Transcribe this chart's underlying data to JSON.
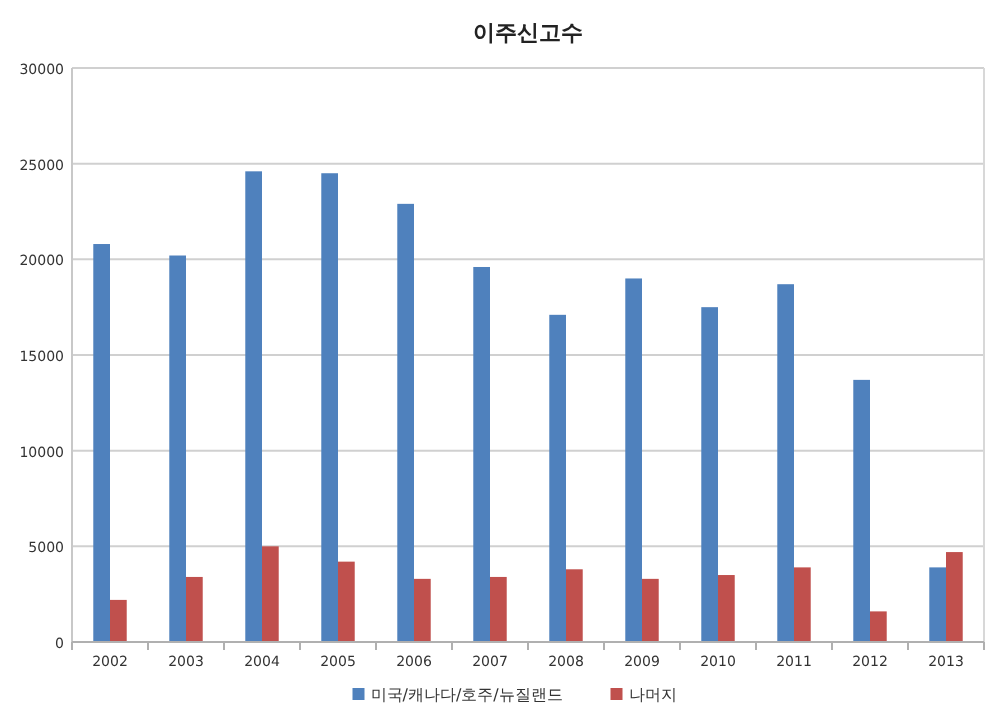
{
  "chart_data": {
    "type": "bar",
    "title": "이주신고수",
    "categories": [
      "2002",
      "2003",
      "2004",
      "2005",
      "2006",
      "2007",
      "2008",
      "2009",
      "2010",
      "2011",
      "2012",
      "2013"
    ],
    "series": [
      {
        "name": "미국/캐나다/호주/뉴질랜드",
        "color": "#4f81bd",
        "values": [
          20800,
          20200,
          24600,
          24500,
          22900,
          19600,
          17100,
          19000,
          17500,
          18700,
          13700,
          3900
        ]
      },
      {
        "name": "나머지",
        "color": "#c0504d",
        "values": [
          2200,
          3400,
          5000,
          4200,
          3300,
          3400,
          3800,
          3300,
          3500,
          3900,
          1600,
          4700
        ]
      }
    ],
    "ylim": [
      0,
      30000
    ],
    "yticks": [
      0,
      5000,
      10000,
      15000,
      20000,
      25000,
      30000
    ],
    "grid": "y",
    "legend": "bottom"
  }
}
